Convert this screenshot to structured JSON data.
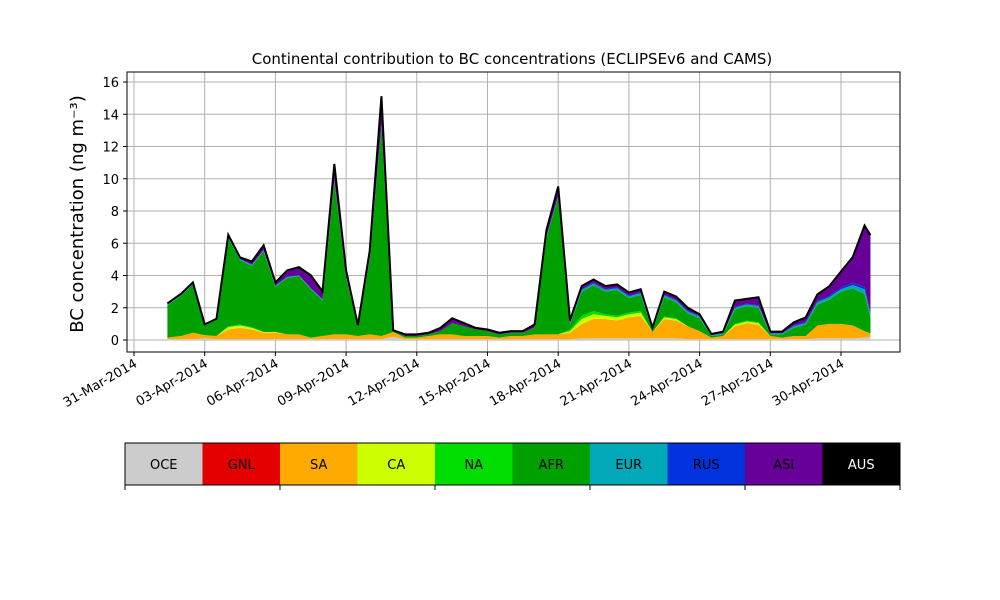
{
  "chart_data": {
    "type": "area",
    "title": "Continental contribution to BC concentrations (ECLIPSEv6 and CAMS)",
    "ylabel": "BC concentration (ng m⁻³)",
    "xlabel": "",
    "ylim": [
      0,
      16
    ],
    "xlim": [
      "2014-03-31",
      "2014-05-03"
    ],
    "y_ticks": [
      0,
      2,
      4,
      6,
      8,
      10,
      12,
      14,
      16
    ],
    "x_ticks": [
      "2014-03-31",
      "2014-04-03",
      "2014-04-06",
      "2014-04-09",
      "2014-04-12",
      "2014-04-15",
      "2014-04-18",
      "2014-04-21",
      "2014-04-24",
      "2014-04-27",
      "2014-04-30"
    ],
    "x_tick_labels": [
      "31-Mar-2014",
      "03-Apr-2014",
      "06-Apr-2014",
      "09-Apr-2014",
      "12-Apr-2014",
      "15-Apr-2014",
      "18-Apr-2014",
      "21-Apr-2014",
      "24-Apr-2014",
      "27-Apr-2014",
      "30-Apr-2014"
    ],
    "grid": true,
    "stacked": true,
    "x": [
      "2014-04-01T10:00",
      "2014-04-02T00:00",
      "2014-04-02T12:00",
      "2014-04-03T00:00",
      "2014-04-03T12:00",
      "2014-04-04T00:00",
      "2014-04-04T12:00",
      "2014-04-05T00:00",
      "2014-04-05T12:00",
      "2014-04-06T00:00",
      "2014-04-06T12:00",
      "2014-04-07T00:00",
      "2014-04-07T12:00",
      "2014-04-08T00:00",
      "2014-04-08T12:00",
      "2014-04-09T00:00",
      "2014-04-09T12:00",
      "2014-04-10T00:00",
      "2014-04-10T12:00",
      "2014-04-11T00:00",
      "2014-04-11T12:00",
      "2014-04-12T00:00",
      "2014-04-12T12:00",
      "2014-04-13T00:00",
      "2014-04-13T12:00",
      "2014-04-14T00:00",
      "2014-04-14T12:00",
      "2014-04-15T00:00",
      "2014-04-15T12:00",
      "2014-04-16T00:00",
      "2014-04-16T12:00",
      "2014-04-17T00:00",
      "2014-04-17T12:00",
      "2014-04-18T00:00",
      "2014-04-18T12:00",
      "2014-04-19T00:00",
      "2014-04-19T12:00",
      "2014-04-20T00:00",
      "2014-04-20T12:00",
      "2014-04-21T00:00",
      "2014-04-21T12:00",
      "2014-04-22T00:00",
      "2014-04-22T12:00",
      "2014-04-23T00:00",
      "2014-04-23T12:00",
      "2014-04-24T00:00",
      "2014-04-24T12:00",
      "2014-04-25T00:00",
      "2014-04-25T12:00",
      "2014-04-26T00:00",
      "2014-04-26T12:00",
      "2014-04-27T00:00",
      "2014-04-27T12:00",
      "2014-04-28T00:00",
      "2014-04-28T12:00",
      "2014-04-29T00:00",
      "2014-04-29T12:00",
      "2014-04-30T00:00",
      "2014-04-30T12:00",
      "2014-05-01T00:00",
      "2014-05-01T06:00"
    ],
    "series": [
      {
        "name": "OCE",
        "color": "#cccccc",
        "values": [
          0.05,
          0.05,
          0.05,
          0.1,
          0.05,
          0.05,
          0.05,
          0.05,
          0.05,
          0.05,
          0.05,
          0.05,
          0.05,
          0.05,
          0.05,
          0.05,
          0.05,
          0.05,
          0.05,
          0.2,
          0.05,
          0.05,
          0.05,
          0.05,
          0.05,
          0.05,
          0.05,
          0.05,
          0.05,
          0.05,
          0.05,
          0.05,
          0.05,
          0.05,
          0.05,
          0.1,
          0.1,
          0.1,
          0.1,
          0.1,
          0.1,
          0.1,
          0.1,
          0.1,
          0.05,
          0.05,
          0.05,
          0.05,
          0.05,
          0.05,
          0.05,
          0.05,
          0.05,
          0.05,
          0.05,
          0.1,
          0.1,
          0.1,
          0.1,
          0.15,
          0.2
        ]
      },
      {
        "name": "GNL",
        "color": "#e50000",
        "values": [
          0,
          0,
          0,
          0,
          0,
          0,
          0,
          0,
          0,
          0,
          0,
          0,
          0,
          0,
          0,
          0,
          0,
          0,
          0,
          0,
          0,
          0,
          0,
          0,
          0,
          0,
          0,
          0,
          0,
          0,
          0,
          0,
          0,
          0,
          0,
          0,
          0,
          0,
          0,
          0,
          0,
          0,
          0,
          0,
          0,
          0,
          0,
          0,
          0,
          0,
          0,
          0,
          0,
          0,
          0,
          0,
          0,
          0,
          0,
          0,
          0
        ]
      },
      {
        "name": "SA",
        "color": "#ffaa00",
        "values": [
          0.1,
          0.2,
          0.4,
          0.2,
          0.2,
          0.6,
          0.7,
          0.6,
          0.4,
          0.4,
          0.3,
          0.3,
          0.1,
          0.2,
          0.3,
          0.3,
          0.2,
          0.3,
          0.2,
          0.3,
          0.1,
          0.1,
          0.2,
          0.3,
          0.3,
          0.2,
          0.2,
          0.2,
          0.1,
          0.2,
          0.2,
          0.3,
          0.3,
          0.3,
          0.4,
          0.9,
          1.2,
          1.2,
          1.1,
          1.3,
          1.4,
          0.4,
          1.2,
          1.1,
          0.8,
          0.5,
          0.1,
          0.2,
          0.8,
          1.0,
          0.9,
          0.2,
          0.1,
          0.2,
          0.2,
          0.8,
          0.9,
          0.9,
          0.8,
          0.4,
          0.2
        ]
      },
      {
        "name": "CA",
        "color": "#ccff00",
        "values": [
          0,
          0,
          0,
          0,
          0,
          0.15,
          0.15,
          0.1,
          0.05,
          0.05,
          0,
          0,
          0,
          0,
          0,
          0,
          0,
          0,
          0,
          0,
          0,
          0,
          0,
          0,
          0,
          0,
          0,
          0,
          0,
          0,
          0,
          0,
          0,
          0,
          0.1,
          0.3,
          0.3,
          0.2,
          0.2,
          0.2,
          0.2,
          0,
          0.1,
          0.1,
          0,
          0,
          0,
          0,
          0.1,
          0.1,
          0.1,
          0,
          0,
          0,
          0,
          0,
          0,
          0,
          0,
          0,
          0
        ]
      },
      {
        "name": "NA",
        "color": "#00dd00",
        "values": [
          0,
          0,
          0,
          0,
          0,
          0.05,
          0.05,
          0.05,
          0,
          0,
          0,
          0,
          0,
          0,
          0,
          0,
          0,
          0,
          0,
          0,
          0,
          0,
          0,
          0,
          0,
          0,
          0,
          0,
          0,
          0,
          0,
          0,
          0,
          0,
          0.1,
          0.2,
          0.2,
          0.1,
          0.1,
          0.1,
          0.1,
          0,
          0.05,
          0.05,
          0,
          0,
          0,
          0,
          0.05,
          0.05,
          0.05,
          0,
          0,
          0,
          0,
          0,
          0,
          0,
          0,
          0,
          0
        ]
      },
      {
        "name": "AFR",
        "color": "#00a000",
        "values": [
          2.0,
          2.5,
          3.0,
          0.6,
          1.0,
          5.5,
          4.0,
          3.8,
          5.0,
          2.8,
          3.5,
          3.6,
          3.0,
          2.2,
          9.5,
          3.5,
          0.6,
          4.6,
          13.0,
          0.05,
          0.1,
          0.1,
          0.1,
          0.2,
          0.7,
          0.6,
          0.4,
          0.3,
          0.2,
          0.2,
          0.2,
          0.4,
          6.0,
          8.5,
          0.3,
          1.5,
          1.6,
          1.4,
          1.6,
          0.9,
          1.0,
          0.1,
          1.2,
          1.0,
          0.8,
          0.8,
          0.1,
          0.1,
          0.9,
          0.9,
          0.9,
          0.1,
          0.2,
          0.5,
          0.7,
          1.3,
          1.5,
          2.0,
          2.3,
          2.3,
          1.0
        ]
      },
      {
        "name": "EUR",
        "color": "#00a8b8",
        "values": [
          0.05,
          0.05,
          0.05,
          0.02,
          0.02,
          0.05,
          0.05,
          0.05,
          0.05,
          0.05,
          0.05,
          0.05,
          0.05,
          0.05,
          0.05,
          0.05,
          0.02,
          0.05,
          0.05,
          0,
          0,
          0,
          0,
          0,
          0,
          0,
          0,
          0,
          0,
          0,
          0,
          0.02,
          0.05,
          0.05,
          0.05,
          0.1,
          0.1,
          0.1,
          0.1,
          0.1,
          0.1,
          0.05,
          0.1,
          0.1,
          0.1,
          0.1,
          0.05,
          0.05,
          0.1,
          0.1,
          0.1,
          0.05,
          0.05,
          0.1,
          0.1,
          0.15,
          0.15,
          0.15,
          0.2,
          0.3,
          0.2
        ]
      },
      {
        "name": "RUS",
        "color": "#0033dd",
        "values": [
          0.02,
          0.02,
          0.02,
          0,
          0,
          0.02,
          0.02,
          0.02,
          0.02,
          0.02,
          0.02,
          0.02,
          0.02,
          0.02,
          0.02,
          0.02,
          0,
          0.02,
          0.02,
          0,
          0,
          0,
          0,
          0,
          0,
          0,
          0,
          0,
          0,
          0,
          0,
          0,
          0.02,
          0.02,
          0.02,
          0.05,
          0.05,
          0.05,
          0.05,
          0.05,
          0.05,
          0.02,
          0.05,
          0.05,
          0.05,
          0.05,
          0.02,
          0.02,
          0.05,
          0.05,
          0.05,
          0.02,
          0.02,
          0.05,
          0.05,
          0.08,
          0.08,
          0.1,
          0.15,
          0.15,
          0.1
        ]
      },
      {
        "name": "ASI",
        "color": "#660099",
        "values": [
          0.05,
          0.05,
          0.05,
          0.05,
          0.05,
          0.1,
          0.1,
          0.2,
          0.3,
          0.2,
          0.4,
          0.5,
          0.8,
          0.5,
          1.0,
          0.4,
          0.05,
          0.5,
          1.8,
          0.05,
          0.1,
          0.1,
          0.1,
          0.2,
          0.3,
          0.2,
          0.1,
          0.1,
          0.1,
          0.1,
          0.1,
          0.2,
          0.4,
          0.6,
          0.2,
          0.2,
          0.2,
          0.2,
          0.2,
          0.2,
          0.2,
          0.1,
          0.2,
          0.2,
          0.2,
          0.1,
          0.05,
          0.1,
          0.4,
          0.3,
          0.5,
          0.1,
          0.1,
          0.2,
          0.3,
          0.4,
          0.6,
          1.0,
          1.6,
          3.8,
          4.8
        ]
      },
      {
        "name": "AUS",
        "color": "#000000",
        "values": [
          0,
          0,
          0,
          0,
          0,
          0,
          0,
          0,
          0,
          0,
          0,
          0,
          0,
          0,
          0,
          0,
          0,
          0,
          0,
          0,
          0,
          0,
          0,
          0,
          0,
          0,
          0,
          0,
          0,
          0,
          0,
          0,
          0,
          0,
          0,
          0,
          0,
          0,
          0,
          0,
          0,
          0,
          0,
          0,
          0,
          0,
          0,
          0,
          0,
          0,
          0,
          0,
          0,
          0,
          0,
          0,
          0,
          0,
          0,
          0,
          0
        ]
      }
    ],
    "legend": {
      "placement": "bottom",
      "entries": [
        "OCE",
        "GNL",
        "SA",
        "CA",
        "NA",
        "AFR",
        "EUR",
        "RUS",
        "ASI",
        "AUS"
      ]
    }
  }
}
